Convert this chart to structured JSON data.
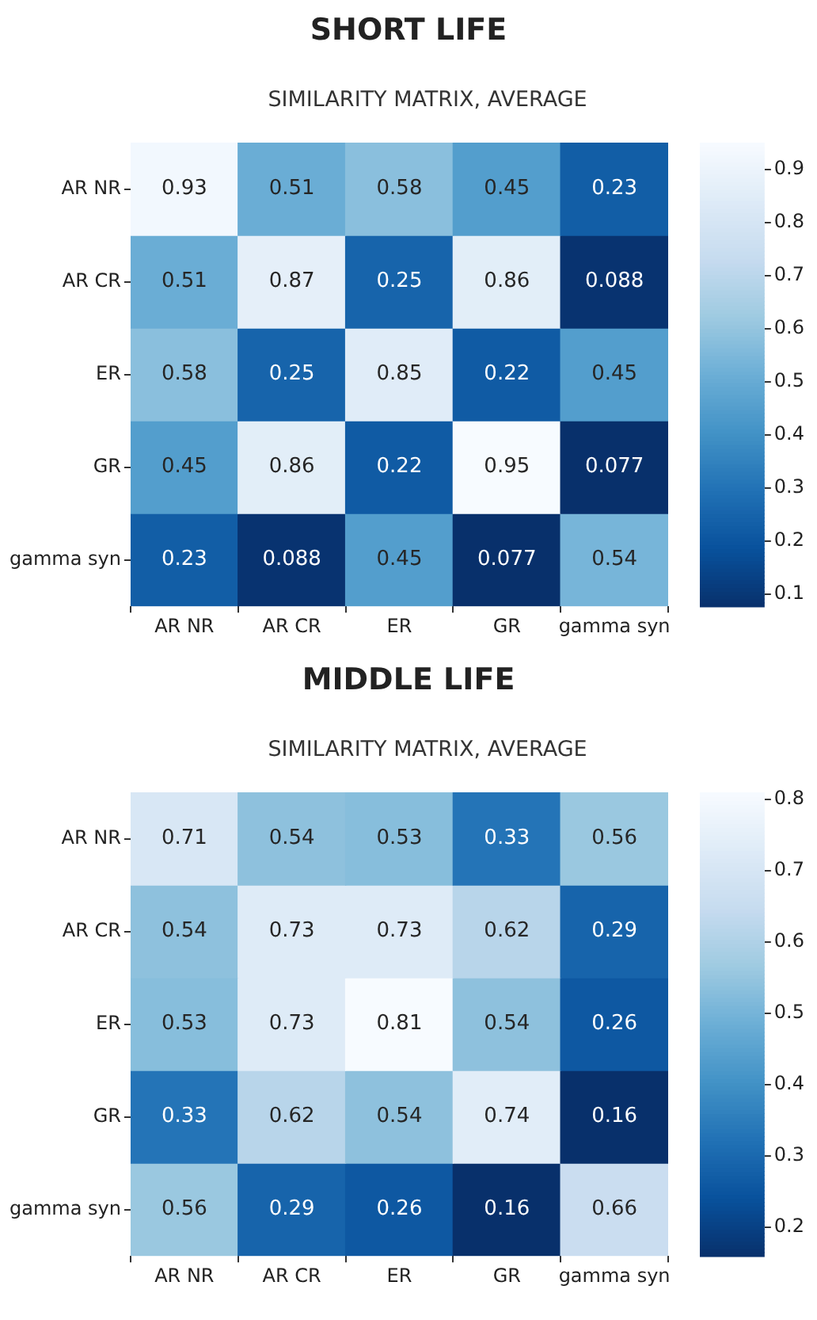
{
  "chart_data": [
    {
      "type": "heatmap",
      "title": "SHORT LIFE",
      "subtitle": "SIMILARITY MATRIX, AVERAGE",
      "categories": [
        "AR NR",
        "AR CR",
        "ER",
        "GR",
        "gamma syn"
      ],
      "y_categories": [
        "AR NR",
        "AR CR",
        "ER",
        "GR",
        "gamma syn"
      ],
      "cells": [
        [
          0.93,
          0.51,
          0.58,
          0.45,
          0.23
        ],
        [
          0.51,
          0.87,
          0.25,
          0.86,
          0.088
        ],
        [
          0.58,
          0.25,
          0.85,
          0.22,
          0.45
        ],
        [
          0.45,
          0.86,
          0.22,
          0.95,
          0.077
        ],
        [
          0.23,
          0.088,
          0.45,
          0.077,
          0.54
        ]
      ],
      "clim": [
        0.077,
        0.95
      ],
      "cticks": [
        0.1,
        0.2,
        0.3,
        0.4,
        0.5,
        0.6,
        0.7,
        0.8,
        0.9
      ],
      "data_labels": true
    },
    {
      "type": "heatmap",
      "title": "MIDDLE LIFE",
      "subtitle": "SIMILARITY MATRIX, AVERAGE",
      "categories": [
        "AR NR",
        "AR CR",
        "ER",
        "GR",
        "gamma syn"
      ],
      "y_categories": [
        "AR NR",
        "AR CR",
        "ER",
        "GR",
        "gamma syn"
      ],
      "cells": [
        [
          0.71,
          0.54,
          0.53,
          0.33,
          0.56
        ],
        [
          0.54,
          0.73,
          0.73,
          0.62,
          0.29
        ],
        [
          0.53,
          0.73,
          0.81,
          0.54,
          0.26
        ],
        [
          0.33,
          0.62,
          0.54,
          0.74,
          0.16
        ],
        [
          0.56,
          0.29,
          0.26,
          0.16,
          0.66
        ]
      ],
      "clim": [
        0.16,
        0.81
      ],
      "cticks": [
        0.2,
        0.3,
        0.4,
        0.5,
        0.6,
        0.7,
        0.8
      ],
      "data_labels": true
    }
  ]
}
